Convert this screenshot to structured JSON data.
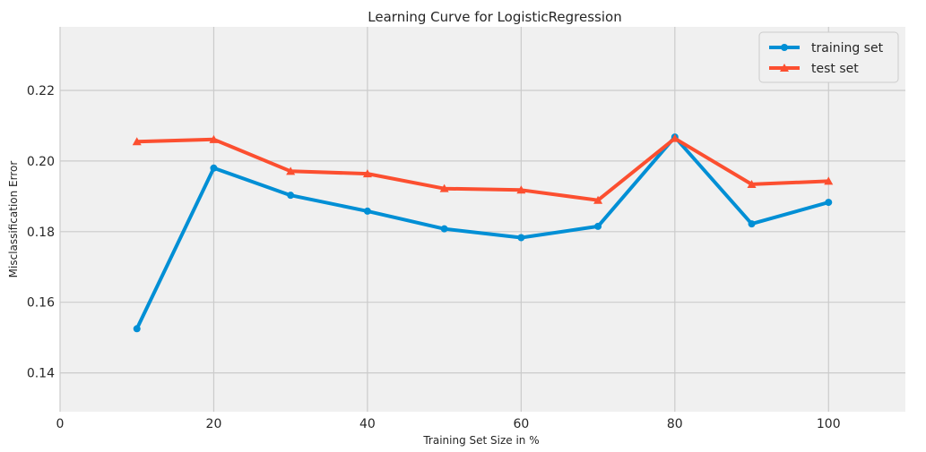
{
  "chart_data": {
    "type": "line",
    "title": "Learning Curve for LogisticRegression",
    "xlabel": "Training Set Size in %",
    "ylabel": "Misclassification Error",
    "xlim": [
      0,
      110
    ],
    "ylim": [
      0.129,
      0.238
    ],
    "xticks": [
      0,
      20,
      40,
      60,
      80,
      100
    ],
    "yticks": [
      0.14,
      0.16,
      0.18,
      0.2,
      0.22
    ],
    "ytick_labels": [
      "0.14",
      "0.16",
      "0.18",
      "0.20",
      "0.22"
    ],
    "grid": true,
    "legend_position": "top-right",
    "x": [
      10,
      20,
      30,
      40,
      50,
      60,
      70,
      80,
      90,
      100
    ],
    "series": [
      {
        "name": "training set",
        "color": "#008fd5",
        "marker": "circle",
        "values": [
          0.1525,
          0.198,
          0.1903,
          0.1858,
          0.1808,
          0.1783,
          0.1815,
          0.2068,
          0.1822,
          0.1883
        ]
      },
      {
        "name": "test set",
        "color": "#fc4f30",
        "marker": "triangle",
        "values": [
          0.2055,
          0.2061,
          0.1971,
          0.1964,
          0.1922,
          0.1918,
          0.1889,
          0.2064,
          0.1934,
          0.1943
        ]
      }
    ]
  },
  "colors": {
    "plot_background": "#f0f0f0",
    "grid": "#cbcbcb"
  }
}
